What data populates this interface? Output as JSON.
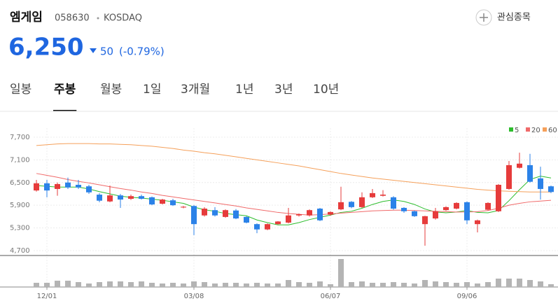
{
  "header": {
    "name": "엠게임",
    "code": "058630",
    "market": "KOSDAQ",
    "watch": "관심종목",
    "price": "6,250",
    "change": "50",
    "change_pct": "(-0.79%)"
  },
  "tabs": {
    "items": [
      "일봉",
      "주봉",
      "월봉",
      "1일",
      "3개월",
      "1년",
      "3년",
      "10년"
    ],
    "active": 1
  },
  "chart_data": {
    "type": "candlestick",
    "x": [
      null,
      "12/01",
      null,
      null,
      null,
      null,
      null,
      null,
      null,
      null,
      null,
      null,
      null,
      null,
      null,
      "03/08",
      null,
      null,
      null,
      null,
      null,
      null,
      null,
      null,
      null,
      null,
      null,
      null,
      "06/07",
      null,
      null,
      null,
      null,
      null,
      null,
      null,
      null,
      null,
      null,
      null,
      null,
      "09/06",
      null,
      null,
      null,
      null,
      null,
      null,
      null,
      null
    ],
    "open": [
      6290,
      6480,
      6330,
      6500,
      6440,
      6400,
      6180,
      6000,
      6160,
      6070,
      6140,
      6110,
      5940,
      6030,
      5840,
      5880,
      5630,
      5770,
      5590,
      5760,
      5590,
      5400,
      5260,
      5400,
      5440,
      5630,
      5630,
      5810,
      5650,
      5790,
      5990,
      5850,
      6110,
      6150,
      6110,
      5830,
      5740,
      5400,
      5550,
      5770,
      5810,
      5980,
      5400,
      5780,
      5740,
      6330,
      6890,
      6960,
      6610,
      6400
    ],
    "high": [
      6570,
      6570,
      6500,
      6630,
      6570,
      6440,
      6220,
      6420,
      6200,
      6180,
      6180,
      6130,
      6070,
      6070,
      5880,
      5900,
      5850,
      5850,
      5790,
      5800,
      5610,
      5420,
      5420,
      5480,
      5830,
      5680,
      5790,
      5830,
      5740,
      6390,
      6010,
      6240,
      6330,
      6300,
      6140,
      5850,
      5760,
      5620,
      5830,
      5870,
      5980,
      6000,
      5520,
      5980,
      6460,
      7070,
      7290,
      7260,
      6920,
      6420
    ],
    "low": [
      6260,
      6110,
      6150,
      6330,
      6330,
      6200,
      5980,
      5980,
      5830,
      6040,
      6050,
      5900,
      5920,
      5880,
      5820,
      5110,
      5600,
      5600,
      5570,
      5530,
      5420,
      5160,
      5240,
      5390,
      5420,
      5600,
      5600,
      5480,
      5620,
      5770,
      5820,
      5830,
      6090,
      6130,
      5780,
      5700,
      5590,
      4830,
      5520,
      5750,
      5790,
      5400,
      5180,
      5760,
      5720,
      6310,
      6870,
      6500,
      6050,
      6220
    ],
    "close": [
      6480,
      6290,
      6460,
      6370,
      6370,
      6240,
      6020,
      6160,
      6050,
      6140,
      6070,
      5920,
      6050,
      5900,
      5860,
      5400,
      5810,
      5630,
      5770,
      5550,
      5440,
      5260,
      5400,
      5470,
      5630,
      5660,
      5770,
      5500,
      5720,
      5980,
      5850,
      6110,
      6220,
      6180,
      5810,
      5740,
      5610,
      5610,
      5740,
      5850,
      5960,
      5500,
      5500,
      5960,
      6440,
      6960,
      7000,
      6520,
      6330,
      6250
    ],
    "volume": [
      6,
      6,
      9,
      9,
      7,
      5,
      7,
      8,
      8,
      7,
      8,
      6,
      5,
      6,
      5,
      8,
      7,
      5,
      6,
      6,
      5,
      6,
      5,
      5,
      10,
      7,
      6,
      8,
      4,
      40,
      7,
      8,
      6,
      6,
      7,
      6,
      5,
      10,
      8,
      7,
      6,
      7,
      5,
      7,
      12,
      12,
      12,
      10,
      8,
      4
    ],
    "moving_averages": [
      {
        "name": "5",
        "color": "#2dbd2d",
        "values": [
          6420,
          6400,
          6380,
          6380,
          6380,
          6330,
          6260,
          6200,
          6140,
          6110,
          6090,
          6060,
          6030,
          5990,
          5950,
          5850,
          5780,
          5740,
          5680,
          5650,
          5620,
          5510,
          5440,
          5380,
          5380,
          5440,
          5520,
          5580,
          5640,
          5710,
          5740,
          5820,
          5920,
          6000,
          6040,
          6000,
          5920,
          5800,
          5720,
          5700,
          5720,
          5760,
          5710,
          5700,
          5760,
          6020,
          6310,
          6580,
          6670,
          6620
        ]
      },
      {
        "name": "20",
        "color": "#f06a6a",
        "values": [
          6740,
          6690,
          6640,
          6580,
          6530,
          6490,
          6440,
          6390,
          6340,
          6300,
          6250,
          6210,
          6160,
          6120,
          6080,
          6040,
          6000,
          5960,
          5920,
          5880,
          5830,
          5790,
          5750,
          5710,
          5680,
          5660,
          5640,
          5650,
          5670,
          5690,
          5710,
          5730,
          5750,
          5760,
          5770,
          5770,
          5760,
          5750,
          5740,
          5730,
          5720,
          5720,
          5730,
          5760,
          5820,
          5900,
          5950,
          5990,
          6010,
          6030
        ]
      },
      {
        "name": "60",
        "color": "#f5a05a",
        "values": [
          7480,
          7500,
          7520,
          7530,
          7530,
          7530,
          7520,
          7520,
          7510,
          7500,
          7480,
          7460,
          7430,
          7400,
          7360,
          7330,
          7290,
          7260,
          7220,
          7180,
          7140,
          7100,
          7060,
          7020,
          6980,
          6940,
          6890,
          6840,
          6790,
          6740,
          6700,
          6660,
          6620,
          6590,
          6560,
          6530,
          6500,
          6470,
          6440,
          6410,
          6380,
          6350,
          6320,
          6300,
          6280,
          6270,
          6260,
          6250,
          6250,
          6250
        ]
      }
    ],
    "up_color": "#e63b3b",
    "down_color": "#2b82e8",
    "volume_color": "#b4b4b4",
    "ylim": [
      4570,
      7940
    ],
    "yticks": [
      {
        "value": 7700,
        "label": "7,700"
      },
      {
        "value": 7100,
        "label": "7,100"
      },
      {
        "value": 6500,
        "label": "6,500"
      },
      {
        "value": 5900,
        "label": "5,900"
      },
      {
        "value": 5300,
        "label": "5,300"
      },
      {
        "value": 4700,
        "label": "4,700"
      }
    ],
    "grid": true
  }
}
